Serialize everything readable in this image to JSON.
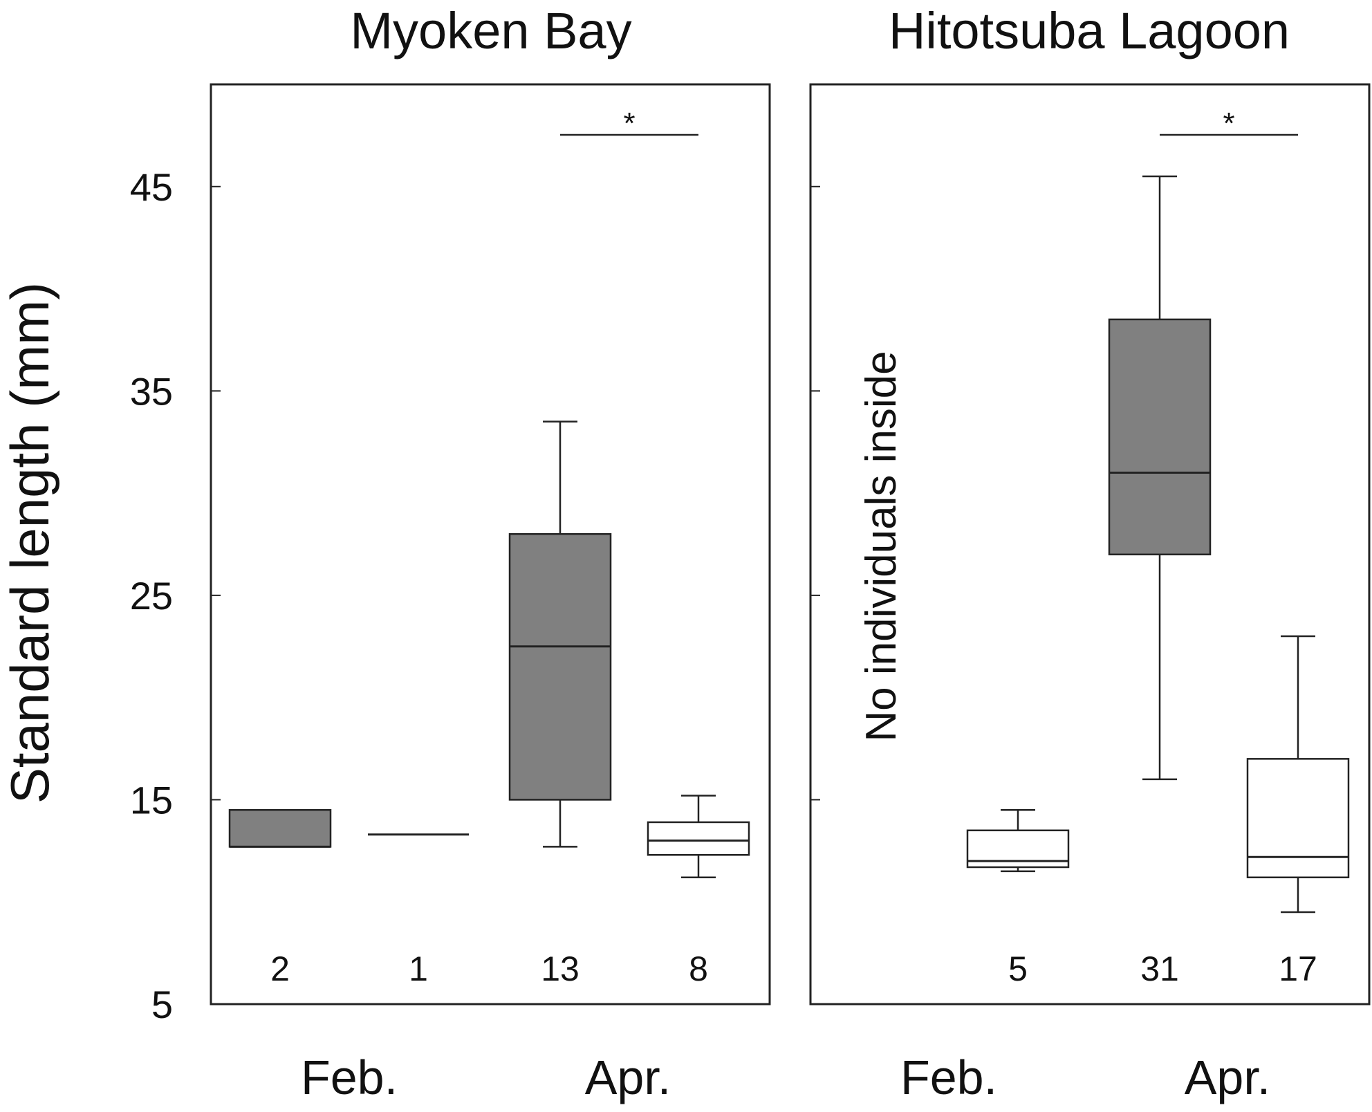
{
  "chart_data": {
    "type": "box",
    "ylabel": "Standard length (mm)",
    "ylim": [
      5,
      50
    ],
    "yticks": [
      5,
      15,
      25,
      35,
      45
    ],
    "colors": {
      "filled": "#808080",
      "open": "#ffffff",
      "stroke": "#222222"
    },
    "panels": [
      {
        "title": "Myoken Bay",
        "month_labels": [
          "Feb.",
          "Apr."
        ],
        "note": "",
        "significance": [
          {
            "between": [
              2,
              3
            ],
            "label": "*"
          }
        ],
        "boxes": [
          {
            "month": "Feb.",
            "fill": "filled",
            "n": "2",
            "min": 12.7,
            "q1": 12.7,
            "median": 12.7,
            "q3": 14.5,
            "max": 14.5
          },
          {
            "month": "Feb.",
            "fill": "open",
            "n": "1",
            "min": 13.3,
            "q1": 13.3,
            "median": 13.3,
            "q3": 13.3,
            "max": 13.3
          },
          {
            "month": "Apr.",
            "fill": "filled",
            "n": "13",
            "min": 12.7,
            "q1": 15.0,
            "median": 22.5,
            "q3": 28.0,
            "max": 33.5
          },
          {
            "month": "Apr.",
            "fill": "open",
            "n": "8",
            "min": 11.2,
            "q1": 12.3,
            "median": 13.0,
            "q3": 13.9,
            "max": 15.2
          }
        ]
      },
      {
        "title": "Hitotsuba Lagoon",
        "month_labels": [
          "Feb.",
          "Apr."
        ],
        "note": "No individuals inside",
        "significance": [
          {
            "between": [
              2,
              3
            ],
            "label": "*"
          }
        ],
        "boxes": [
          {
            "month": "Feb.",
            "fill": "none",
            "n": "",
            "empty": true
          },
          {
            "month": "Feb.",
            "fill": "open",
            "n": "5",
            "min": 11.5,
            "q1": 11.7,
            "median": 12.0,
            "q3": 13.5,
            "max": 14.5
          },
          {
            "month": "Apr.",
            "fill": "filled",
            "n": "31",
            "min": 16.0,
            "q1": 27.0,
            "median": 31.0,
            "q3": 38.5,
            "max": 45.5
          },
          {
            "month": "Apr.",
            "fill": "open",
            "n": "17",
            "min": 9.5,
            "q1": 11.2,
            "median": 12.2,
            "q3": 17.0,
            "max": 23.0
          }
        ]
      }
    ]
  }
}
